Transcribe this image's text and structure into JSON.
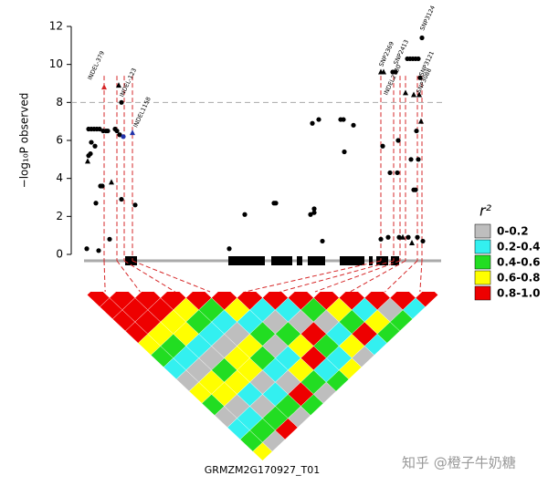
{
  "chart_data": {
    "type": "scatter",
    "y_label": "−log₁₀P observed",
    "xlim": [
      0,
      407
    ],
    "ylim": [
      0,
      12
    ],
    "yticks": [
      0,
      2,
      4,
      6,
      8,
      10,
      12
    ],
    "threshold": 8,
    "series": [
      {
        "color": "#000000",
        "marker": "circle",
        "x": [
          17,
          19,
          21,
          22,
          19,
          22,
          25,
          28,
          31,
          26,
          27,
          30,
          32,
          34,
          35,
          38,
          40,
          42,
          48,
          50,
          53,
          55,
          70,
          55,
          173,
          190,
          222,
          224,
          262,
          264,
          266,
          266,
          271,
          275,
          295,
          298,
          299,
          309,
          339,
          341,
          347,
          349,
          352,
          355,
          357,
          358,
          359,
          369,
          368,
          371,
          374,
          377,
          380,
          372,
          375,
          377,
          378,
          380,
          382,
          384,
          385,
          379
        ],
        "values": [
          0.3,
          5.2,
          5.3,
          5.9,
          6.6,
          6.6,
          6.6,
          6.6,
          6.6,
          5.7,
          2.7,
          0.2,
          3.6,
          3.6,
          6.5,
          6.5,
          6.5,
          0.8,
          6.6,
          6.5,
          6.3,
          2.9,
          2.6,
          8.0,
          0.3,
          2.1,
          2.7,
          2.7,
          2.1,
          6.9,
          2.2,
          2.4,
          7.1,
          0.7,
          7.1,
          7.1,
          5.4,
          6.8,
          0.8,
          5.7,
          0.9,
          4.3,
          9.6,
          9.6,
          4.3,
          6.0,
          0.9,
          0.9,
          10.3,
          10.3,
          10.3,
          10.3,
          10.3,
          5.0,
          3.4,
          3.4,
          6.5,
          5.0,
          9.3,
          11.4,
          0.7,
          0.9
        ]
      },
      {
        "color": "#000000",
        "marker": "triangle",
        "x": [
          18,
          44,
          52,
          339,
          342,
          363,
          366,
          375,
          381,
          383,
          373
        ],
        "values": [
          4.9,
          3.8,
          8.9,
          9.6,
          9.6,
          0.9,
          8.5,
          8.4,
          8.4,
          7.0,
          0.6
        ]
      },
      {
        "color": "#d62728",
        "marker": "triangle",
        "x": [
          36
        ],
        "values": [
          8.8
        ]
      },
      {
        "color": "#2233aa",
        "marker": "circle",
        "x": [
          57
        ],
        "values": [
          6.2
        ]
      },
      {
        "color": "#2233aa",
        "marker": "triangle",
        "x": [
          67
        ],
        "values": [
          6.4
        ]
      }
    ],
    "annotations": [
      {
        "text": "INDEL-379",
        "x": 20,
        "y": 9.2
      },
      {
        "text": "INDEL-123",
        "x": 55,
        "y": 8.3
      },
      {
        "text": "INDEL1158",
        "x": 70,
        "y": 6.7
      },
      {
        "text": "SNP2369",
        "x": 339,
        "y": 9.9
      },
      {
        "text": "INDEL2730",
        "x": 344,
        "y": 8.4
      },
      {
        "text": "SNP2413",
        "x": 355,
        "y": 10.0
      },
      {
        "text": "SNP3088",
        "x": 380,
        "y": 8.5
      },
      {
        "text": "SNP3121",
        "x": 383,
        "y": 9.4
      },
      {
        "text": "SNP3124",
        "x": 384,
        "y": 11.8
      }
    ],
    "highlighted": [
      36,
      50,
      58,
      67,
      339,
      353,
      360,
      366,
      379,
      384
    ],
    "gene_track": {
      "label": "GRMZM2G170927_T01",
      "range": [
        14,
        405
      ],
      "exons": [
        [
          59,
          72
        ],
        [
          172,
          212
        ],
        [
          219,
          242
        ],
        [
          247,
          253
        ],
        [
          259,
          278
        ],
        [
          294,
          321
        ],
        [
          326,
          330
        ],
        [
          334,
          347
        ],
        [
          350,
          359
        ]
      ]
    },
    "legend": {
      "title": "r²",
      "breaks": [
        0,
        0.2,
        0.4,
        0.6,
        0.8,
        1.0
      ],
      "items": [
        {
          "label": "0-0.2",
          "color": "#bebebe"
        },
        {
          "label": "0.2-0.4",
          "color": "#33f0f0"
        },
        {
          "label": "0.4-0.6",
          "color": "#22dd22"
        },
        {
          "label": "0.6-0.8",
          "color": "#ffff00"
        },
        {
          "label": "0.8-1.0",
          "color": "#ee0000"
        }
      ]
    },
    "ld_r2": [
      [
        0.9,
        0.9,
        0.9,
        0.9,
        0.7,
        0.5,
        0.3,
        0.1,
        0.7,
        0.5,
        0.1,
        0.3,
        0.5,
        0.7
      ],
      [
        0.9,
        0.9,
        0.9,
        0.7,
        0.5,
        0.3,
        0.1,
        0.7,
        0.7,
        0.1,
        0.3,
        0.5,
        0.1
      ],
      [
        0.9,
        0.9,
        0.7,
        0.7,
        0.3,
        0.1,
        0.5,
        0.7,
        0.3,
        0.1,
        0.5,
        0.9
      ],
      [
        0.9,
        0.7,
        0.5,
        0.3,
        0.1,
        0.7,
        0.7,
        0.1,
        0.3,
        0.5,
        0.1
      ],
      [
        0.9,
        0.5,
        0.3,
        0.1,
        0.7,
        0.5,
        0.3,
        0.1,
        0.9,
        0.5
      ],
      [
        0.9,
        0.7,
        0.3,
        0.5,
        0.1,
        0.3,
        0.7,
        0.5,
        0.1
      ],
      [
        0.9,
        0.3,
        0.1,
        0.5,
        0.7,
        0.9,
        0.3,
        0.5
      ],
      [
        0.9,
        0.3,
        0.1,
        0.9,
        0.5,
        0.3,
        0.7
      ],
      [
        0.9,
        0.5,
        0.1,
        0.3,
        0.7,
        0.1
      ],
      [
        0.9,
        0.7,
        0.5,
        0.9,
        0.3
      ],
      [
        0.9,
        0.3,
        0.7,
        0.5
      ],
      [
        0.9,
        0.1,
        0.5
      ],
      [
        0.9,
        0.3
      ],
      [
        0.9
      ]
    ],
    "watermark": "知乎 @橙子牛奶糖"
  }
}
